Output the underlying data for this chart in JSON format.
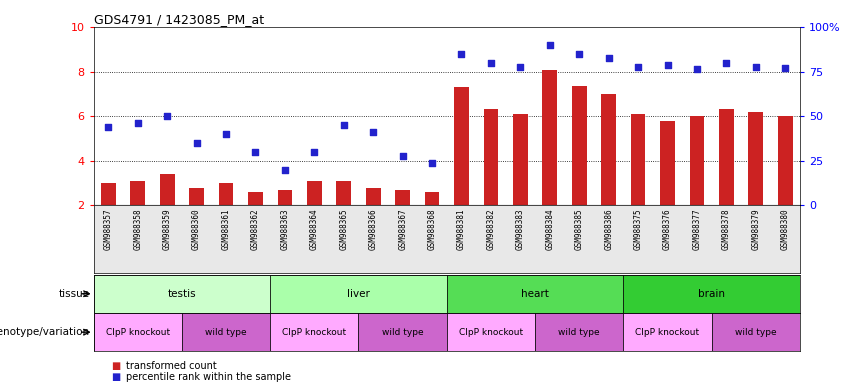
{
  "title": "GDS4791 / 1423085_PM_at",
  "samples": [
    "GSM988357",
    "GSM988358",
    "GSM988359",
    "GSM988360",
    "GSM988361",
    "GSM988362",
    "GSM988363",
    "GSM988364",
    "GSM988365",
    "GSM988366",
    "GSM988367",
    "GSM988368",
    "GSM988381",
    "GSM988382",
    "GSM988383",
    "GSM988384",
    "GSM988385",
    "GSM988386",
    "GSM988375",
    "GSM988376",
    "GSM988377",
    "GSM988378",
    "GSM988379",
    "GSM988380"
  ],
  "bar_heights": [
    3.0,
    3.1,
    3.4,
    2.8,
    3.0,
    2.6,
    2.7,
    3.1,
    3.1,
    2.8,
    2.7,
    2.6,
    7.3,
    6.3,
    6.1,
    8.05,
    7.35,
    7.0,
    6.1,
    5.8,
    6.0,
    6.3,
    6.2,
    6.0
  ],
  "scatter_y": [
    5.5,
    5.7,
    6.0,
    4.8,
    5.2,
    4.4,
    3.6,
    4.4,
    5.6,
    5.3,
    4.2,
    3.9,
    8.8,
    8.4,
    8.2,
    9.2,
    8.8,
    8.6,
    8.2,
    8.3,
    8.1,
    8.4,
    8.2,
    8.15
  ],
  "ylim_left": [
    2,
    10
  ],
  "yticks_left": [
    2,
    4,
    6,
    8,
    10
  ],
  "yticks_right": [
    0,
    25,
    50,
    75,
    100
  ],
  "ylim_right": [
    0,
    100
  ],
  "bar_color": "#cc2222",
  "scatter_color": "#2222cc",
  "bg_color": "#ffffff",
  "tissue_groups": [
    {
      "label": "testis",
      "start": 0,
      "end": 5,
      "color": "#ccffcc"
    },
    {
      "label": "liver",
      "start": 6,
      "end": 11,
      "color": "#aaffaa"
    },
    {
      "label": "heart",
      "start": 12,
      "end": 17,
      "color": "#55dd55"
    },
    {
      "label": "brain",
      "start": 18,
      "end": 23,
      "color": "#33cc33"
    }
  ],
  "genotype_groups": [
    {
      "label": "ClpP knockout",
      "start": 0,
      "end": 2,
      "color": "#ffaaff"
    },
    {
      "label": "wild type",
      "start": 3,
      "end": 5,
      "color": "#cc66cc"
    },
    {
      "label": "ClpP knockout",
      "start": 6,
      "end": 8,
      "color": "#ffaaff"
    },
    {
      "label": "wild type",
      "start": 9,
      "end": 11,
      "color": "#cc66cc"
    },
    {
      "label": "ClpP knockout",
      "start": 12,
      "end": 14,
      "color": "#ffaaff"
    },
    {
      "label": "wild type",
      "start": 15,
      "end": 17,
      "color": "#cc66cc"
    },
    {
      "label": "ClpP knockout",
      "start": 18,
      "end": 20,
      "color": "#ffaaff"
    },
    {
      "label": "wild type",
      "start": 21,
      "end": 23,
      "color": "#cc66cc"
    }
  ],
  "label_tissue": "tissue",
  "label_genotype": "genotype/variation",
  "legend_bar": "transformed count",
  "legend_scatter": "percentile rank within the sample"
}
